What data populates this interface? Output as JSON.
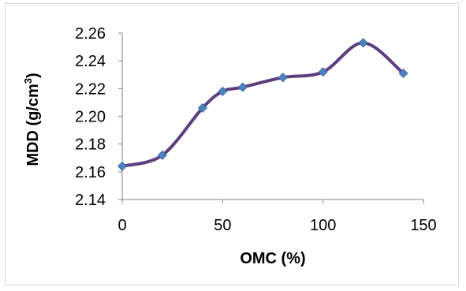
{
  "chart_data": {
    "type": "line",
    "smooth": true,
    "title": "",
    "xlabel": "OMC (%)",
    "ylabel": {
      "prefix": "MDD (g/cm",
      "superscript": "3",
      "suffix": ")"
    },
    "xlim": [
      0,
      150
    ],
    "ylim": [
      2.14,
      2.26
    ],
    "x_ticks": [
      0,
      50,
      100,
      150
    ],
    "y_ticks": [
      2.14,
      2.16,
      2.18,
      2.2,
      2.22,
      2.24,
      2.26
    ],
    "y_tick_decimals": 2,
    "grid": false,
    "legend": "none",
    "series": [
      {
        "x": [
          0,
          20,
          40,
          50,
          60,
          80,
          100,
          120,
          140
        ],
        "y": [
          2.164,
          2.172,
          2.206,
          2.218,
          2.221,
          2.228,
          2.232,
          2.253,
          2.231
        ]
      }
    ],
    "colors": {
      "line": "#5b3f7e",
      "marker": "#4f81bd",
      "axis": "#868686",
      "frame": "#d9d9d9"
    }
  }
}
